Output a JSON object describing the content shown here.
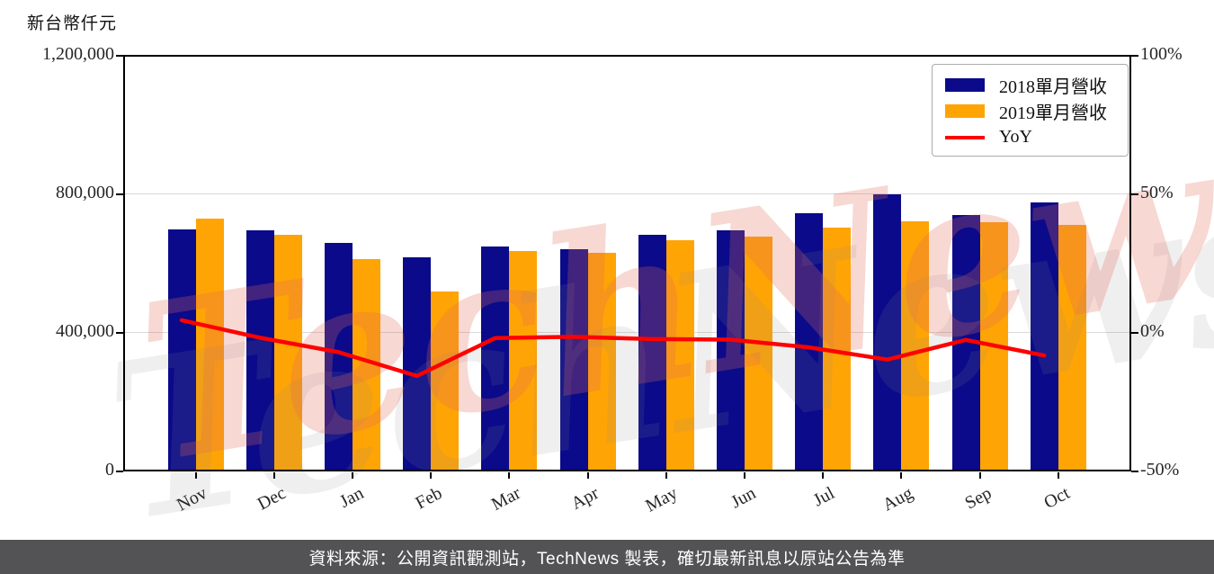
{
  "title": {
    "unit_label": "新台幣仟元"
  },
  "chart_data": {
    "type": "bar",
    "title": "",
    "categories": [
      "Nov",
      "Dec",
      "Jan",
      "Feb",
      "Mar",
      "Apr",
      "May",
      "Jun",
      "Jul",
      "Aug",
      "Sep",
      "Oct"
    ],
    "series": [
      {
        "name": "2018單月營收",
        "kind": "bar",
        "color": "#0A0A8A",
        "values": [
          697000,
          694000,
          658000,
          616000,
          647000,
          640000,
          682000,
          694000,
          743000,
          798000,
          738000,
          775000
        ]
      },
      {
        "name": "2019單月營收",
        "kind": "bar",
        "color": "#FFA405",
        "values": [
          728000,
          681000,
          611000,
          519000,
          634000,
          630000,
          666000,
          676000,
          703000,
          720000,
          718000,
          711000
        ]
      },
      {
        "name": "YoY",
        "kind": "line",
        "color": "#FF0000",
        "values": [
          4.4,
          -1.9,
          -7.1,
          -15.7,
          -2.0,
          -1.6,
          -2.4,
          -2.6,
          -5.4,
          -9.8,
          -2.7,
          -8.3
        ]
      }
    ],
    "left_axis": {
      "label": "新台幣仟元",
      "tick_values": [
        0,
        400000,
        800000,
        1200000
      ],
      "tick_labels": [
        "0",
        "400,000",
        "800,000",
        "1,200,000"
      ],
      "range": [
        0,
        1200000
      ]
    },
    "right_axis": {
      "tick_values": [
        -50,
        0,
        50,
        100
      ],
      "tick_labels": [
        "-50%",
        "0%",
        "50%",
        "100%"
      ],
      "range": [
        -50,
        100
      ]
    },
    "legend_position": "top-right",
    "grid": "horizontal-only"
  },
  "watermark": {
    "text": "TechNews",
    "pink": "#E26A5A",
    "grey": "#8A8A8A"
  },
  "footer": {
    "text": "資料來源：公開資訊觀測站，TechNews 製表，確切最新訊息以原站公告為準"
  }
}
